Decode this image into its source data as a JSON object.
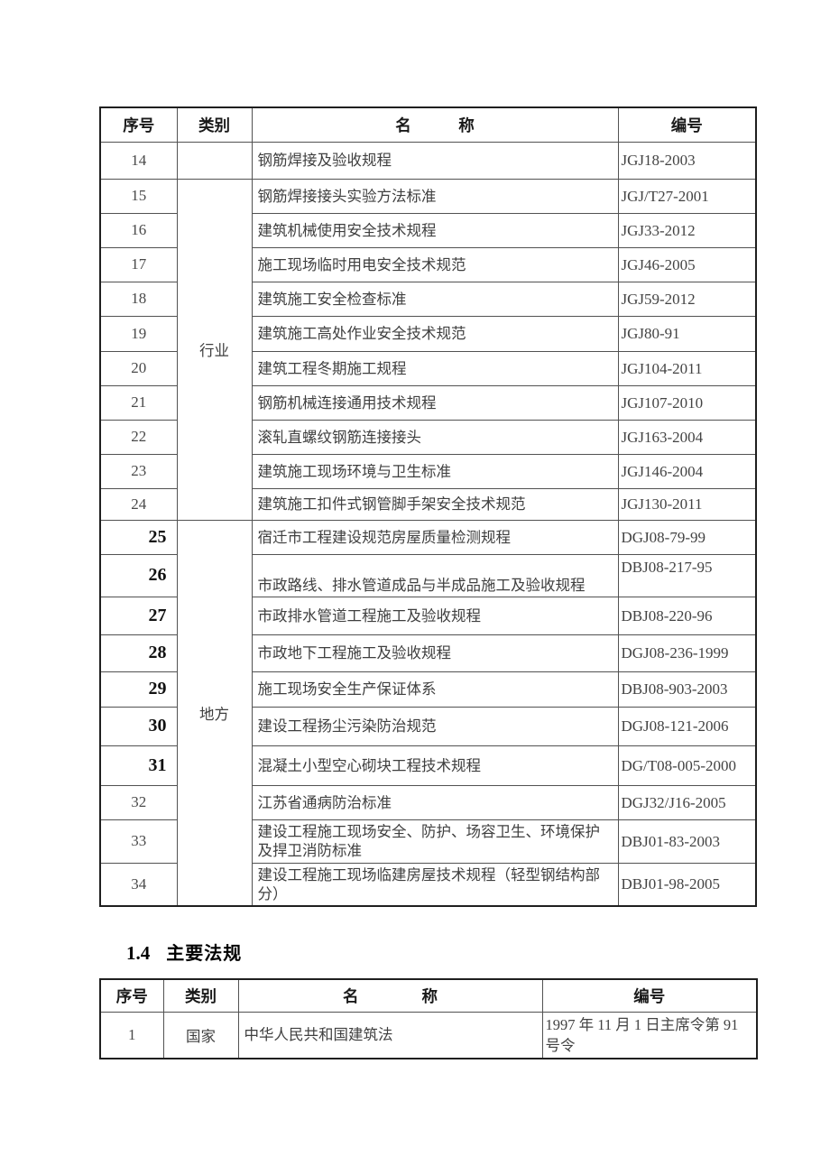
{
  "document": {
    "section_heading": {
      "number": "1.4",
      "title": "主要法规"
    },
    "standards_table": {
      "headers": {
        "num": "序号",
        "category": "类别",
        "name": "名　　　称",
        "code": "编号"
      },
      "category_groups": [
        {
          "label": "",
          "start": 0,
          "span": 1
        },
        {
          "label": "行业",
          "start": 1,
          "span": 10
        },
        {
          "label": "地方",
          "start": 11,
          "span": 10
        }
      ],
      "bold_row_numbers": [
        "25",
        "26",
        "27",
        "28",
        "29",
        "30",
        "31"
      ],
      "rows": [
        {
          "num": "14",
          "name": "钢筋焊接及验收规程",
          "code": "JGJ18-2003"
        },
        {
          "num": "15",
          "name": "钢筋焊接接头实验方法标准",
          "code": "JGJ/T27-2001"
        },
        {
          "num": "16",
          "name": "建筑机械使用安全技术规程",
          "code": "JGJ33-2012"
        },
        {
          "num": "17",
          "name": "施工现场临时用电安全技术规范",
          "code": "JGJ46-2005"
        },
        {
          "num": "18",
          "name": "建筑施工安全检查标准",
          "code": "JGJ59-2012"
        },
        {
          "num": "19",
          "name": "建筑施工高处作业安全技术规范",
          "code": "JGJ80-91"
        },
        {
          "num": "20",
          "name": "建筑工程冬期施工规程",
          "code": "JGJ104-2011"
        },
        {
          "num": "21",
          "name": "钢筋机械连接通用技术规程",
          "code": "JGJ107-2010"
        },
        {
          "num": "22",
          "name": "滚轧直螺纹钢筋连接接头",
          "code": "JGJ163-2004"
        },
        {
          "num": "23",
          "name": "建筑施工现场环境与卫生标准",
          "code": "JGJ146-2004"
        },
        {
          "num": "24",
          "name": "建筑施工扣件式钢管脚手架安全技术规范",
          "code": "JGJ130-2011"
        },
        {
          "num": "25",
          "name": "宿迁市工程建设规范房屋质量检测规程",
          "code": "DGJ08-79-99"
        },
        {
          "num": "26",
          "name": "市政路线、排水管道成品与半成品施工及验收规程",
          "code": "DBJ08-217-95"
        },
        {
          "num": "27",
          "name": "市政排水管道工程施工及验收规程",
          "code": "DBJ08-220-96"
        },
        {
          "num": "28",
          "name": "市政地下工程施工及验收规程",
          "code": "DGJ08-236-1999"
        },
        {
          "num": "29",
          "name": "施工现场安全生产保证体系",
          "code": "DBJ08-903-2003"
        },
        {
          "num": "30",
          "name": "建设工程扬尘污染防治规范",
          "code": "DGJ08-121-2006"
        },
        {
          "num": "31",
          "name": "混凝土小型空心砌块工程技术规程",
          "code": "DG/T08-005-2000"
        },
        {
          "num": "32",
          "name": "江苏省通病防治标准",
          "code": "DGJ32/J16-2005"
        },
        {
          "num": "33",
          "name": "建设工程施工现场安全、防护、场容卫生、环境保护及捍卫消防标准",
          "code": "DBJ01-83-2003"
        },
        {
          "num": "34",
          "name": "建设工程施工现场临建房屋技术规程（轻型钢结构部分）",
          "code": "DBJ01-98-2005"
        }
      ]
    },
    "regulations_table": {
      "headers": {
        "num": "序号",
        "category": "类别",
        "name": "名　　　　称",
        "code": "编号"
      },
      "category_groups": [
        {
          "label": "国家",
          "start": 0,
          "span": 1
        }
      ],
      "bold_row_numbers": [],
      "rows": [
        {
          "num": "1",
          "name": "中华人民共和国建筑法",
          "code": "1997 年 11 月 1 日主席令第 91 号令"
        }
      ]
    }
  }
}
